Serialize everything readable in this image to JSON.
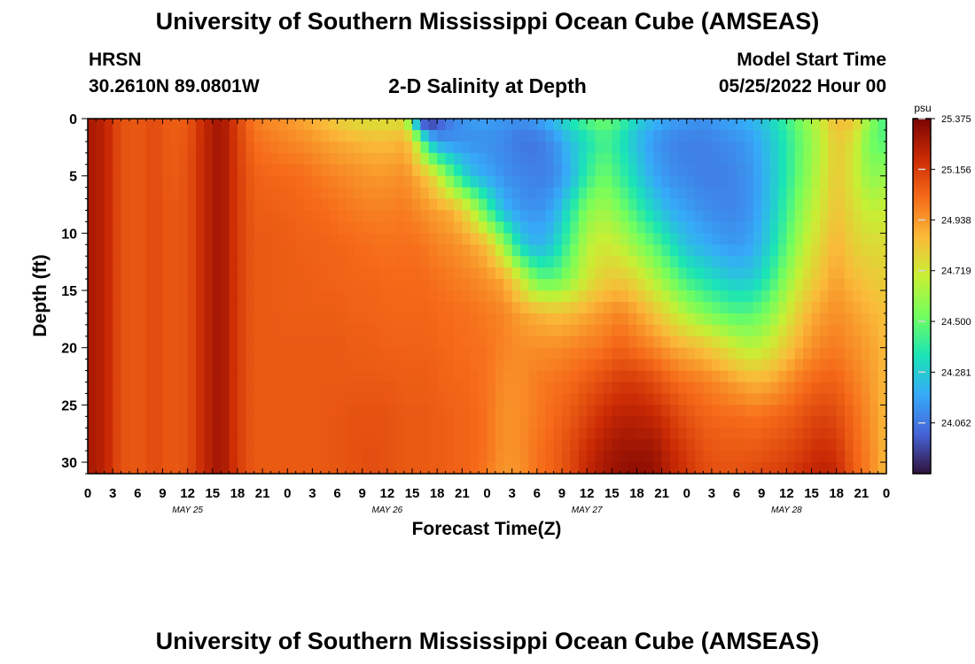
{
  "header": {
    "title": "University of Southern Mississippi Ocean Cube (AMSEAS)",
    "station": "HRSN",
    "coordinates": "30.2610N  89.0801W",
    "chart_title": "2-D Salinity at Depth",
    "model_start_label": "Model Start Time",
    "model_start_value": "05/25/2022 Hour 00",
    "footer_title": "University of Southern Mississippi Ocean Cube (AMSEAS)"
  },
  "chart_data": {
    "type": "heatmap",
    "title": "2-D Salinity at Depth",
    "xlabel": "Forecast Time(Z)",
    "ylabel": "Depth (ft)",
    "x_tick_labels": [
      "0",
      "3",
      "6",
      "9",
      "12",
      "15",
      "18",
      "21",
      "0",
      "3",
      "6",
      "9",
      "12",
      "15",
      "18",
      "21",
      "0",
      "3",
      "6",
      "9",
      "12",
      "15",
      "18",
      "21",
      "0",
      "3",
      "6",
      "9",
      "12",
      "15",
      "18",
      "21",
      "0"
    ],
    "x_range_hours": [
      0,
      96
    ],
    "day_labels": [
      {
        "label": "MAY 25",
        "hour": 12
      },
      {
        "label": "MAY 26",
        "hour": 36
      },
      {
        "label": "MAY 27",
        "hour": 60
      },
      {
        "label": "MAY 28",
        "hour": 84
      }
    ],
    "y_ticks": [
      0,
      5,
      10,
      15,
      20,
      25,
      30
    ],
    "y_range": [
      0,
      31
    ],
    "y_inverted": true,
    "colorbar": {
      "unit": "psu",
      "min": 23.843,
      "max": 25.375,
      "tick_labels": [
        "25.375",
        "25.156",
        "24.938",
        "24.719",
        "24.500",
        "24.281",
        "24.062"
      ],
      "colors": [
        "#30123b",
        "#4663d8",
        "#36aaf9",
        "#1ae4b6",
        "#72fe5e",
        "#c8ef34",
        "#faba39",
        "#f66b19",
        "#ca2a04",
        "#7a0403"
      ]
    },
    "time_hours": [
      0,
      2,
      4,
      6,
      8,
      10,
      12,
      14,
      16,
      18,
      20,
      22,
      24,
      26,
      28,
      30,
      32,
      34,
      36,
      38,
      39,
      40,
      41,
      42,
      44,
      46,
      48,
      50,
      52,
      54,
      56,
      58,
      60,
      62,
      64,
      66,
      68,
      70,
      72,
      74,
      76,
      78,
      80,
      82,
      84,
      86,
      88,
      90,
      92,
      94,
      96
    ],
    "depth_ft": [
      0,
      2,
      5,
      8,
      11,
      14,
      17,
      20,
      23,
      26,
      29,
      31
    ],
    "salinity_psu": [
      [
        25.28,
        25.28,
        25.28,
        25.28,
        25.28,
        25.28,
        25.28,
        25.28,
        25.28,
        25.28,
        25.28,
        25.28
      ],
      [
        25.24,
        25.24,
        25.24,
        25.24,
        25.24,
        25.24,
        25.24,
        25.24,
        25.24,
        25.24,
        25.24,
        25.24
      ],
      [
        25.1,
        25.1,
        25.1,
        25.1,
        25.1,
        25.1,
        25.1,
        25.1,
        25.1,
        25.1,
        25.1,
        25.1
      ],
      [
        25.08,
        25.08,
        25.08,
        25.08,
        25.08,
        25.08,
        25.08,
        25.08,
        25.08,
        25.08,
        25.08,
        25.08
      ],
      [
        25.12,
        25.12,
        25.12,
        25.12,
        25.12,
        25.12,
        25.12,
        25.12,
        25.12,
        25.12,
        25.12,
        25.12
      ],
      [
        25.06,
        25.07,
        25.07,
        25.08,
        25.08,
        25.08,
        25.08,
        25.08,
        25.08,
        25.08,
        25.08,
        25.08
      ],
      [
        25.08,
        25.09,
        25.1,
        25.1,
        25.1,
        25.1,
        25.1,
        25.1,
        25.1,
        25.1,
        25.1,
        25.1
      ],
      [
        25.22,
        25.22,
        25.22,
        25.22,
        25.22,
        25.22,
        25.22,
        25.22,
        25.22,
        25.22,
        25.22,
        25.22
      ],
      [
        25.3,
        25.3,
        25.3,
        25.3,
        25.3,
        25.3,
        25.3,
        25.3,
        25.3,
        25.3,
        25.3,
        25.3
      ],
      [
        25.14,
        25.15,
        25.16,
        25.16,
        25.16,
        25.16,
        25.16,
        25.16,
        25.16,
        25.16,
        25.16,
        25.16
      ],
      [
        25.0,
        25.03,
        25.06,
        25.07,
        25.08,
        25.08,
        25.08,
        25.08,
        25.08,
        25.08,
        25.08,
        25.08
      ],
      [
        24.96,
        25.0,
        25.05,
        25.07,
        25.08,
        25.08,
        25.08,
        25.08,
        25.08,
        25.08,
        25.08,
        25.08
      ],
      [
        24.94,
        24.98,
        25.04,
        25.06,
        25.07,
        25.07,
        25.07,
        25.08,
        25.08,
        25.08,
        25.08,
        25.08
      ],
      [
        24.9,
        24.96,
        25.03,
        25.05,
        25.06,
        25.07,
        25.07,
        25.08,
        25.08,
        25.08,
        25.08,
        25.08
      ],
      [
        24.86,
        24.93,
        25.0,
        25.04,
        25.06,
        25.06,
        25.07,
        25.08,
        25.08,
        25.08,
        25.08,
        25.08
      ],
      [
        24.8,
        24.9,
        24.98,
        25.02,
        25.05,
        25.06,
        25.07,
        25.08,
        25.08,
        25.09,
        25.09,
        25.09
      ],
      [
        24.76,
        24.88,
        24.96,
        25.0,
        25.04,
        25.05,
        25.06,
        25.07,
        25.08,
        25.1,
        25.1,
        25.1
      ],
      [
        24.74,
        24.86,
        24.94,
        24.99,
        25.03,
        25.05,
        25.06,
        25.07,
        25.08,
        25.1,
        25.11,
        25.11
      ],
      [
        24.74,
        24.86,
        24.94,
        24.99,
        25.02,
        25.04,
        25.05,
        25.06,
        25.08,
        25.1,
        25.1,
        25.1
      ],
      [
        24.74,
        24.88,
        24.96,
        25.0,
        25.03,
        25.04,
        25.05,
        25.06,
        25.07,
        25.08,
        25.08,
        25.08
      ],
      [
        24.38,
        24.8,
        24.92,
        24.98,
        25.02,
        25.04,
        25.05,
        25.06,
        25.07,
        25.08,
        25.08,
        25.08
      ],
      [
        23.9,
        24.55,
        24.88,
        24.96,
        25.02,
        25.04,
        25.05,
        25.06,
        25.07,
        25.08,
        25.08,
        25.08
      ],
      [
        23.85,
        24.3,
        24.82,
        24.94,
        25.0,
        25.03,
        25.05,
        25.06,
        25.07,
        25.08,
        25.08,
        25.08
      ],
      [
        23.95,
        24.15,
        24.72,
        24.92,
        24.98,
        25.02,
        25.04,
        25.05,
        25.06,
        25.07,
        25.07,
        25.07
      ],
      [
        24.1,
        24.12,
        24.45,
        24.88,
        24.96,
        25.0,
        25.03,
        25.04,
        25.05,
        25.06,
        25.06,
        25.06
      ],
      [
        24.15,
        24.12,
        24.25,
        24.72,
        24.92,
        24.98,
        25.02,
        25.03,
        25.04,
        25.05,
        25.05,
        25.05
      ],
      [
        24.16,
        24.12,
        24.18,
        24.45,
        24.85,
        24.95,
        25.0,
        25.02,
        25.02,
        25.02,
        25.02,
        25.0
      ],
      [
        24.14,
        24.1,
        24.12,
        24.22,
        24.6,
        24.9,
        24.98,
        24.98,
        24.96,
        24.95,
        24.95,
        24.94
      ],
      [
        24.12,
        24.06,
        24.1,
        24.14,
        24.3,
        24.72,
        24.92,
        24.96,
        24.96,
        24.96,
        24.96,
        24.95
      ],
      [
        24.15,
        24.06,
        24.08,
        24.12,
        24.2,
        24.5,
        24.88,
        24.96,
        25.0,
        25.0,
        25.02,
        25.02
      ],
      [
        24.24,
        24.12,
        24.1,
        24.18,
        24.28,
        24.48,
        24.85,
        24.96,
        25.02,
        25.04,
        25.06,
        25.06
      ],
      [
        24.36,
        24.24,
        24.2,
        24.36,
        24.46,
        24.58,
        24.86,
        24.98,
        25.04,
        25.08,
        25.12,
        25.12
      ],
      [
        24.46,
        24.34,
        24.4,
        24.56,
        24.66,
        24.72,
        24.9,
        25.0,
        25.08,
        25.14,
        25.2,
        25.22
      ],
      [
        24.52,
        24.44,
        24.52,
        24.62,
        24.72,
        24.8,
        24.94,
        25.02,
        25.12,
        25.2,
        25.26,
        25.28
      ],
      [
        24.44,
        24.36,
        24.42,
        24.54,
        24.68,
        24.82,
        24.98,
        25.06,
        25.16,
        25.24,
        25.3,
        25.32
      ],
      [
        24.3,
        24.24,
        24.3,
        24.42,
        24.58,
        24.76,
        24.92,
        25.02,
        25.16,
        25.24,
        25.3,
        25.34
      ],
      [
        24.22,
        24.14,
        24.18,
        24.3,
        24.48,
        24.66,
        24.84,
        24.98,
        25.12,
        25.22,
        25.3,
        25.32
      ],
      [
        24.16,
        24.1,
        24.12,
        24.2,
        24.36,
        24.54,
        24.74,
        24.92,
        25.06,
        25.16,
        25.22,
        25.24
      ],
      [
        24.14,
        24.08,
        24.1,
        24.16,
        24.24,
        24.42,
        24.64,
        24.88,
        25.02,
        25.1,
        25.16,
        25.18
      ],
      [
        24.12,
        24.08,
        24.08,
        24.12,
        24.2,
        24.36,
        24.56,
        24.84,
        25.0,
        25.06,
        25.1,
        25.12
      ],
      [
        24.16,
        24.1,
        24.08,
        24.1,
        24.16,
        24.3,
        24.5,
        24.78,
        24.96,
        25.04,
        25.08,
        25.1
      ],
      [
        24.18,
        24.12,
        24.1,
        24.1,
        24.14,
        24.26,
        24.46,
        24.7,
        24.92,
        25.04,
        25.08,
        25.1
      ],
      [
        24.22,
        24.16,
        24.14,
        24.14,
        24.18,
        24.28,
        24.48,
        24.66,
        24.88,
        25.02,
        25.08,
        25.12
      ],
      [
        24.3,
        24.26,
        24.24,
        24.26,
        24.3,
        24.4,
        24.56,
        24.72,
        24.9,
        25.04,
        25.1,
        25.14
      ],
      [
        24.42,
        24.38,
        24.38,
        24.42,
        24.48,
        24.58,
        24.7,
        24.82,
        24.96,
        25.06,
        25.12,
        25.16
      ],
      [
        24.56,
        24.52,
        24.54,
        24.6,
        24.66,
        24.74,
        24.84,
        24.92,
        25.02,
        25.1,
        25.16,
        25.2
      ],
      [
        24.7,
        24.66,
        24.68,
        24.72,
        24.78,
        24.84,
        24.92,
        24.98,
        25.06,
        25.14,
        25.2,
        25.24
      ],
      [
        24.86,
        24.82,
        24.82,
        24.84,
        24.88,
        24.92,
        24.96,
        25.0,
        25.06,
        25.12,
        25.18,
        25.22
      ],
      [
        24.84,
        24.74,
        24.72,
        24.76,
        24.8,
        24.86,
        24.92,
        24.96,
        25.0,
        25.04,
        25.06,
        25.08
      ],
      [
        24.58,
        24.52,
        24.58,
        24.68,
        24.76,
        24.82,
        24.88,
        24.92,
        24.94,
        24.96,
        24.98,
        24.98
      ],
      [
        24.42,
        24.46,
        24.6,
        24.7,
        24.76,
        24.8,
        24.84,
        24.86,
        24.86,
        24.86,
        24.86,
        24.86
      ]
    ]
  }
}
